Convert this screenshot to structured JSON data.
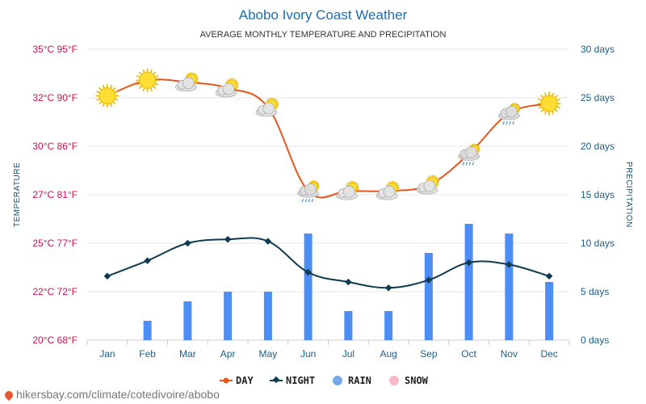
{
  "chart_data": {
    "type": "line",
    "title": "Abobo Ivory Coast Weather",
    "subtitle": "AVERAGE MONTHLY TEMPERATURE AND PRECIPITATION",
    "categories": [
      "Jan",
      "Feb",
      "Mar",
      "Apr",
      "May",
      "Jun",
      "Jul",
      "Aug",
      "Sep",
      "Oct",
      "Nov",
      "Dec"
    ],
    "ylabel_left": "TEMPERATURE",
    "ylabel_right": "PRECIPITATION",
    "left_ticks": [
      "35°C 95°F",
      "32°C 90°F",
      "30°C 86°F",
      "27°C 81°F",
      "25°C 77°F",
      "22°C 72°F",
      "20°C 68°F"
    ],
    "right_ticks": [
      "30 days",
      "25 days",
      "20 days",
      "15 days",
      "10 days",
      "5 days",
      "0 days"
    ],
    "ylim_left": [
      20,
      35
    ],
    "ylim_right": [
      0,
      30
    ],
    "grid": true,
    "legend_position": "bottom",
    "series": [
      {
        "name": "DAY",
        "kind": "line",
        "axis": "left",
        "color": "#e8541e",
        "values": [
          32.6,
          33.4,
          33.3,
          33.0,
          32.0,
          27.7,
          27.7,
          27.7,
          28.0,
          29.6,
          31.7,
          32.2
        ]
      },
      {
        "name": "NIGHT",
        "kind": "line",
        "axis": "left",
        "color": "#0e3b52",
        "values": [
          23.3,
          24.1,
          25.0,
          25.2,
          25.1,
          23.5,
          23.0,
          22.7,
          23.1,
          24.0,
          23.9,
          23.3
        ]
      },
      {
        "name": "RAIN",
        "kind": "bar",
        "axis": "right",
        "color": "#4c8df6",
        "values": [
          0,
          2,
          4,
          5,
          5,
          11,
          3,
          3,
          9,
          12,
          11,
          6
        ]
      },
      {
        "name": "SNOW",
        "kind": "bar",
        "axis": "right",
        "color": "#f7b7c9",
        "values": [
          0,
          0,
          0,
          0,
          0,
          0,
          0,
          0,
          0,
          0,
          0,
          0
        ]
      }
    ],
    "weather_icons": [
      "sun",
      "sun",
      "partly-cloudy",
      "partly-cloudy",
      "partly-cloudy",
      "rain-cloud",
      "partly-cloudy",
      "partly-cloudy",
      "partly-cloudy",
      "rain-cloud",
      "rain-cloud",
      "sun"
    ]
  },
  "legend": {
    "day": "DAY",
    "night": "NIGHT",
    "rain": "RAIN",
    "snow": "SNOW"
  },
  "footer": {
    "text": "hikersbay.com/climate/cotedivoire/abobo"
  }
}
